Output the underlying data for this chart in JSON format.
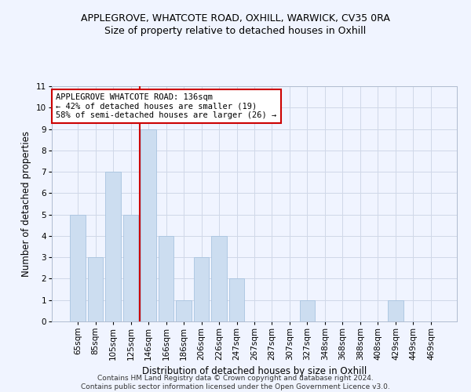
{
  "title1": "APPLEGROVE, WHATCOTE ROAD, OXHILL, WARWICK, CV35 0RA",
  "title2": "Size of property relative to detached houses in Oxhill",
  "xlabel": "Distribution of detached houses by size in Oxhill",
  "ylabel": "Number of detached properties",
  "categories": [
    "65sqm",
    "85sqm",
    "105sqm",
    "125sqm",
    "146sqm",
    "166sqm",
    "186sqm",
    "206sqm",
    "226sqm",
    "247sqm",
    "267sqm",
    "287sqm",
    "307sqm",
    "327sqm",
    "348sqm",
    "368sqm",
    "388sqm",
    "408sqm",
    "429sqm",
    "449sqm",
    "469sqm"
  ],
  "values": [
    5,
    3,
    7,
    5,
    9,
    4,
    1,
    3,
    4,
    2,
    0,
    0,
    0,
    1,
    0,
    0,
    0,
    0,
    1,
    0,
    0
  ],
  "bar_color": "#ccddf0",
  "bar_edge_color": "#a8c4e0",
  "red_line_x": 3.5,
  "annotation_text": "APPLEGROVE WHATCOTE ROAD: 136sqm\n← 42% of detached houses are smaller (19)\n58% of semi-detached houses are larger (26) →",
  "annotation_box_color": "#ffffff",
  "annotation_box_edge": "#cc0000",
  "red_line_color": "#cc0000",
  "ylim": [
    0,
    11
  ],
  "yticks": [
    0,
    1,
    2,
    3,
    4,
    5,
    6,
    7,
    8,
    9,
    10,
    11
  ],
  "grid_color": "#d0d8e8",
  "footer": "Contains HM Land Registry data © Crown copyright and database right 2024.\nContains public sector information licensed under the Open Government Licence v3.0.",
  "title1_fontsize": 9,
  "title2_fontsize": 9,
  "xlabel_fontsize": 8.5,
  "ylabel_fontsize": 8.5,
  "tick_fontsize": 7.5,
  "annotation_fontsize": 7.5,
  "footer_fontsize": 6.5,
  "bg_color": "#f0f4ff"
}
